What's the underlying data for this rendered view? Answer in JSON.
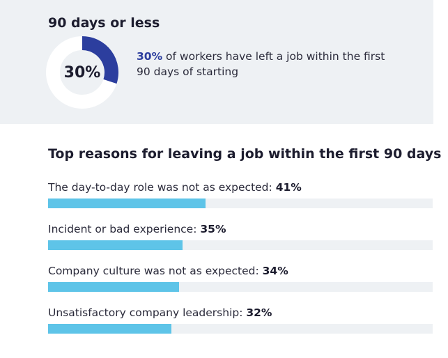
{
  "summary": {
    "title": "90 days or less",
    "donut_percent_label": "30%",
    "donut_value": 30,
    "stat_highlight": "30%",
    "stat_text": " of workers have left a job within the first 90 days of starting",
    "colors": {
      "donut_fill": "#2c3e9e",
      "donut_track": "#ffffff",
      "highlight": "#2c3e9e"
    }
  },
  "reasons": {
    "title": "Top reasons for leaving a job within the first 90 days",
    "bar_color": "#5ec4e8",
    "track_color": "#eef1f4"
  },
  "chart_data": [
    {
      "type": "pie",
      "categories": [
        "Left a job within first 90 days",
        ""
      ],
      "values": [
        30,
        70
      ]
    },
    {
      "type": "bar",
      "title": "Top reasons for leaving a job within the first 90 days",
      "categories": [
        "The day-to-day role was not as expected:",
        "Incident or bad experience:",
        "Company culture was not as expected:",
        "Unsatisfactory company leadership:"
      ],
      "values": [
        41,
        35,
        34,
        32
      ],
      "value_labels": [
        "41%",
        "35%",
        "34%",
        "32%"
      ],
      "ylim": [
        0,
        100
      ]
    }
  ]
}
